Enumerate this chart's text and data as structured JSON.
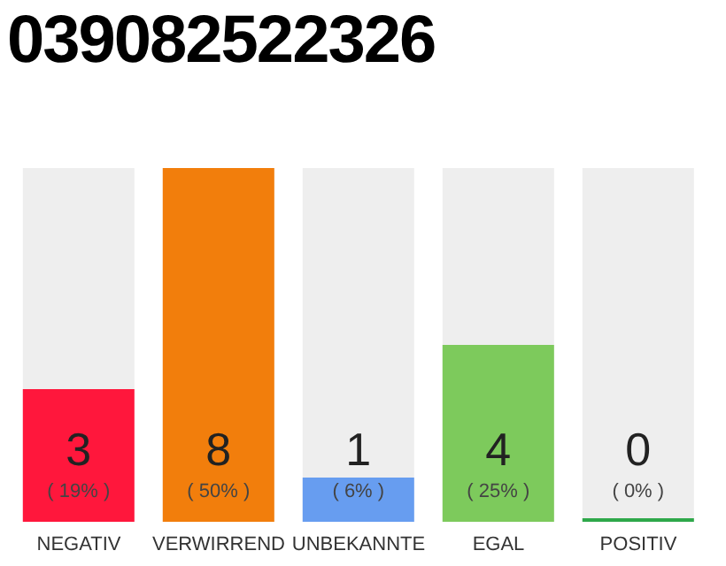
{
  "chart_data": {
    "type": "bar",
    "title": "039082522326",
    "categories": [
      "NEGATIV",
      "VERWIRREND",
      "UNBEKANNTE",
      "EGAL",
      "POSITIV"
    ],
    "values": [
      3,
      8,
      1,
      4,
      0
    ],
    "colors": [
      "#ff173c",
      "#f27e0c",
      "#679df0",
      "#7dca5c",
      "#2ea84a"
    ],
    "ylim": [
      0,
      8
    ],
    "data_labels": true,
    "annotations": [
      "( 19% )",
      "( 50% )",
      "( 6% )",
      "( 25% )",
      "( 0% )"
    ],
    "grid": false,
    "legend": false
  }
}
